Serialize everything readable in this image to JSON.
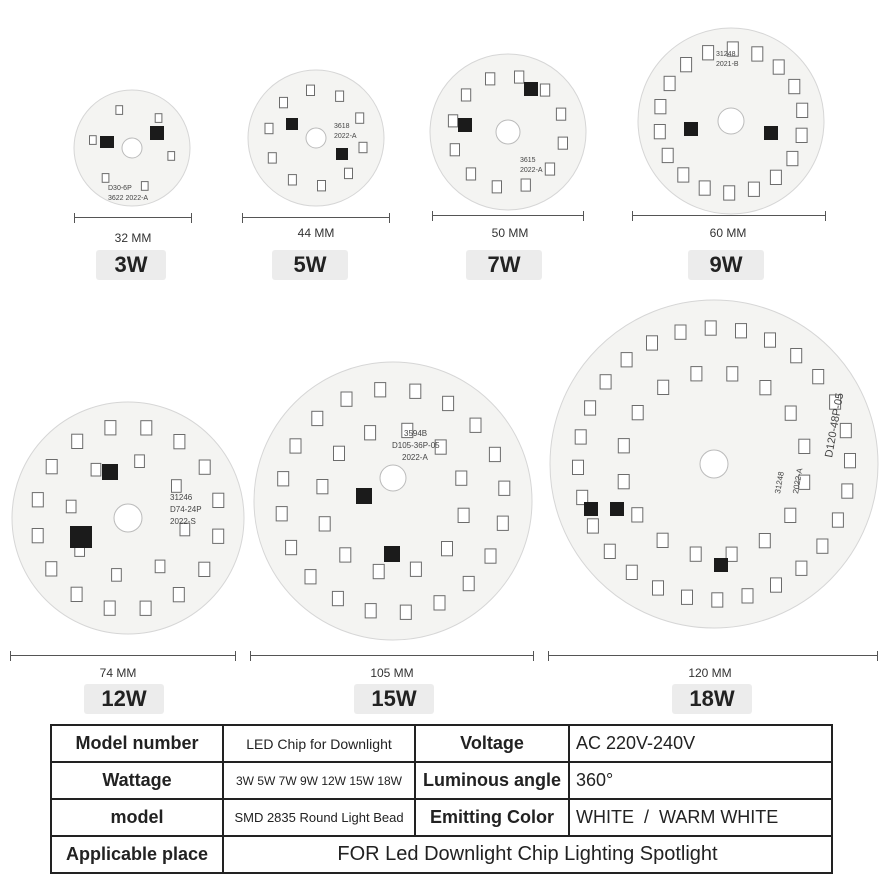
{
  "products": [
    {
      "size": "32 MM",
      "power": "3W"
    },
    {
      "size": "44 MM",
      "power": "5W"
    },
    {
      "size": "50 MM",
      "power": "7W"
    },
    {
      "size": "60 MM",
      "power": "9W"
    },
    {
      "size": "74 MM",
      "power": "12W"
    },
    {
      "size": "105 MM",
      "power": "15W"
    },
    {
      "size": "120 MM",
      "power": "18W"
    }
  ],
  "board_markings": {
    "b3": [
      "D30-6P",
      "3622 2022-A"
    ],
    "b5": [
      "3618",
      "2022-A"
    ],
    "b7": [
      "3615",
      "2022-A"
    ],
    "b9": [
      "31248",
      "2021-B"
    ],
    "b12": [
      "D74-24P",
      "2022-S",
      "31246"
    ],
    "b15": [
      "3594B",
      "D105-36P-05",
      "2022-A"
    ],
    "b18": [
      "D120-48P-05",
      "31248",
      "2022-A"
    ]
  },
  "spec": {
    "model_number_label": "Model number",
    "model_number_value": "LED Chip for Downlight",
    "voltage_label": "Voltage",
    "voltage_value": "AC 220V-240V",
    "wattage_label": "Wattage",
    "wattage_value": "3W 5W 7W 9W 12W 15W 18W",
    "angle_label": "Luminous angle",
    "angle_value": "360°",
    "model_label": "model",
    "model_value": "SMD 2835 Round Light Bead",
    "color_label": "Emitting Color",
    "color_value": "WHITE  /  WARM WHITE",
    "place_label": "Applicable place",
    "place_value": "FOR Led Downlight Chip Lighting Spotlight"
  },
  "colors": {
    "board": "#f2f2f0",
    "led": "#ffffff",
    "led_border": "#6c6c6c",
    "chip": "#1b1b1b"
  }
}
